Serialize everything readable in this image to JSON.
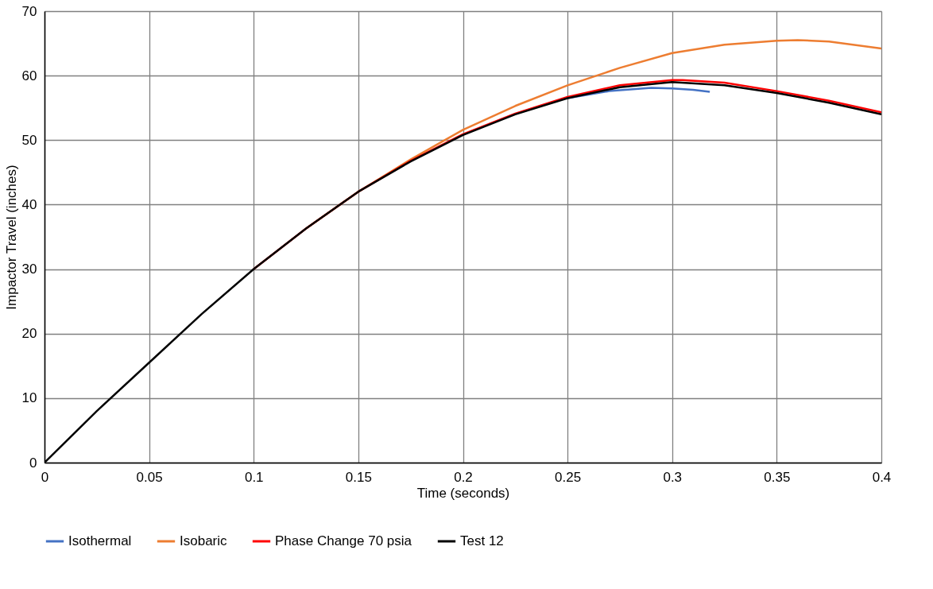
{
  "chart_data": {
    "type": "line",
    "xlabel": "Time (seconds)",
    "ylabel": "Impactor Travel (inches)",
    "xlim": [
      0,
      0.4
    ],
    "xticks": [
      0,
      0.05,
      0.1,
      0.15,
      0.2,
      0.25,
      0.3,
      0.35,
      0.4
    ],
    "ylim": [
      0,
      70
    ],
    "yticks": [
      0,
      10,
      20,
      30,
      40,
      50,
      60,
      70
    ],
    "grid": true,
    "legend": "bottom",
    "marker": "none",
    "line_style": "solid",
    "series": [
      {
        "name": "Isothermal",
        "color": "#4472c4",
        "x": [
          0.25,
          0.27,
          0.29,
          0.3,
          0.31,
          0.318
        ],
        "values": [
          56.5,
          57.6,
          58.1,
          58,
          57.8,
          57.5
        ]
      },
      {
        "name": "Isobaric",
        "color": "#ed7d31",
        "x": [
          0.125,
          0.15,
          0.175,
          0.2,
          0.225,
          0.25,
          0.275,
          0.3,
          0.325,
          0.35,
          0.36,
          0.375,
          0.4
        ],
        "values": [
          36.3,
          42,
          47,
          51.6,
          55.3,
          58.5,
          61.2,
          63.5,
          64.8,
          65.4,
          65.5,
          65.3,
          64.2
        ]
      },
      {
        "name": "Phase Change 70 psia",
        "color": "#ff0000",
        "x": [
          0.1,
          0.125,
          0.15,
          0.175,
          0.2,
          0.225,
          0.25,
          0.275,
          0.3,
          0.305,
          0.325,
          0.35,
          0.375,
          0.4
        ],
        "values": [
          30,
          36.3,
          42,
          46.8,
          50.9,
          54.1,
          56.7,
          58.5,
          59.3,
          59.3,
          58.9,
          57.6,
          56.1,
          54.3
        ]
      },
      {
        "name": "Test 12",
        "color": "#000000",
        "x": [
          0,
          0.025,
          0.05,
          0.075,
          0.1,
          0.125,
          0.15,
          0.175,
          0.2,
          0.225,
          0.25,
          0.275,
          0.3,
          0.325,
          0.35,
          0.375,
          0.4
        ],
        "values": [
          0,
          8,
          15.5,
          23,
          30,
          36.3,
          42,
          46.7,
          50.8,
          54,
          56.5,
          58.2,
          59,
          58.5,
          57.3,
          55.8,
          54
        ]
      }
    ]
  }
}
